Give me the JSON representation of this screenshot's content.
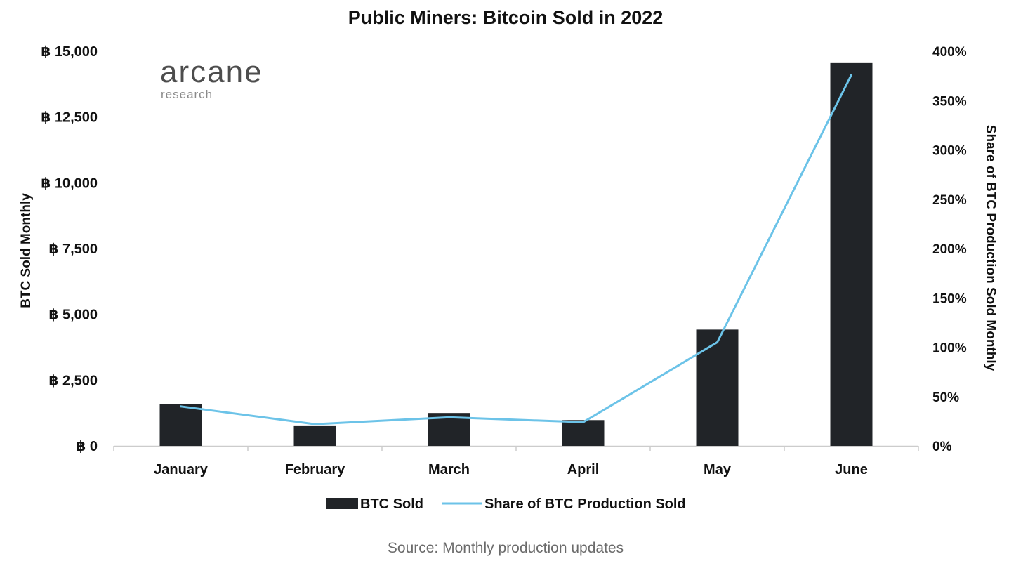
{
  "logo": {
    "main": "arcane",
    "sub": "research"
  },
  "source": "Source: Monthly production updates",
  "colors": {
    "bar": "#212428",
    "line": "#6cc3e8",
    "axis": "#cccccc",
    "text": "#111111"
  },
  "chart_data": {
    "type": "bar",
    "title": "Public Miners: Bitcoin Sold in 2022",
    "categories": [
      "January",
      "February",
      "March",
      "April",
      "May",
      "June"
    ],
    "xlabel": "",
    "ylabel": "BTC Sold Monthly",
    "ylim": [
      0,
      15000
    ],
    "y_ticks": [
      "฿ 0",
      "฿ 2,500",
      "฿ 5,000",
      "฿ 7,500",
      "฿ 10,000",
      "฿ 12,500",
      "฿ 15,000"
    ],
    "y_tick_values": [
      0,
      2500,
      5000,
      7500,
      10000,
      12500,
      15000
    ],
    "y2label": "Share of BTC Production Sold Monthly",
    "y2lim": [
      0,
      400
    ],
    "y2_ticks": [
      "0%",
      "50%",
      "100%",
      "150%",
      "200%",
      "250%",
      "300%",
      "350%",
      "400%"
    ],
    "y2_tick_values": [
      0,
      50,
      100,
      150,
      200,
      250,
      300,
      350,
      400
    ],
    "legend_position": "bottom-center",
    "series": [
      {
        "name": "BTC Sold",
        "kind": "bar",
        "axis": "left",
        "values": [
          1600,
          750,
          1250,
          980,
          4420,
          14550
        ]
      },
      {
        "name": "Share of BTC Production Sold",
        "kind": "line",
        "axis": "right",
        "values": [
          40,
          22,
          29,
          24,
          105,
          376
        ]
      }
    ]
  }
}
